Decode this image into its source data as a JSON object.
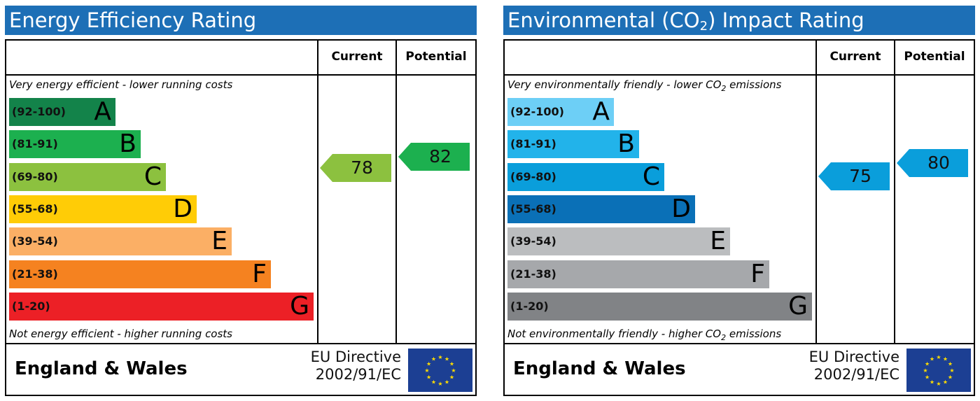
{
  "chart_data": [
    {
      "type": "bar",
      "title": "Energy Efficiency Rating",
      "columns": [
        "Current",
        "Potential"
      ],
      "top_note": "Very energy efficient - lower running costs",
      "bottom_note": "Not energy efficient - higher running costs",
      "bands": [
        {
          "range": "(92-100)",
          "letter": "A",
          "color": "#13834a"
        },
        {
          "range": "(81-91)",
          "letter": "B",
          "color": "#1cb04f"
        },
        {
          "range": "(69-80)",
          "letter": "C",
          "color": "#8cc13f"
        },
        {
          "range": "(55-68)",
          "letter": "D",
          "color": "#ffcc06"
        },
        {
          "range": "(39-54)",
          "letter": "E",
          "color": "#fbaf65"
        },
        {
          "range": "(21-38)",
          "letter": "F",
          "color": "#f58220"
        },
        {
          "range": "(1-20)",
          "letter": "G",
          "color": "#ec2026"
        }
      ],
      "current": {
        "value": 78,
        "color": "#8cc13f"
      },
      "potential": {
        "value": 82,
        "color": "#1cb04f"
      },
      "footer_country": "England & Wales",
      "footer_directive_line1": "EU Directive",
      "footer_directive_line2": "2002/91/EC"
    },
    {
      "type": "bar",
      "title_pre": "Environmental (CO",
      "title_sub": "2",
      "title_post": ") Impact Rating",
      "columns": [
        "Current",
        "Potential"
      ],
      "top_note_pre": "Very environmentally friendly - lower CO",
      "top_note_sub": "2",
      "top_note_post": " emissions",
      "bottom_note_pre": "Not environmentally friendly - higher CO",
      "bottom_note_sub": "2",
      "bottom_note_post": " emissions",
      "bands": [
        {
          "range": "(92-100)",
          "letter": "A",
          "color": "#6dcff6"
        },
        {
          "range": "(81-91)",
          "letter": "B",
          "color": "#22b3ea"
        },
        {
          "range": "(69-80)",
          "letter": "C",
          "color": "#0a9edb"
        },
        {
          "range": "(55-68)",
          "letter": "D",
          "color": "#0a70b7"
        },
        {
          "range": "(39-54)",
          "letter": "E",
          "color": "#bbbdbf"
        },
        {
          "range": "(21-38)",
          "letter": "F",
          "color": "#a6a8ab"
        },
        {
          "range": "(1-20)",
          "letter": "G",
          "color": "#818386"
        }
      ],
      "current": {
        "value": 75,
        "color": "#0a9edb"
      },
      "potential": {
        "value": 80,
        "color": "#0a9edb"
      },
      "footer_country": "England & Wales",
      "footer_directive_line1": "EU Directive",
      "footer_directive_line2": "2002/91/EC"
    }
  ]
}
